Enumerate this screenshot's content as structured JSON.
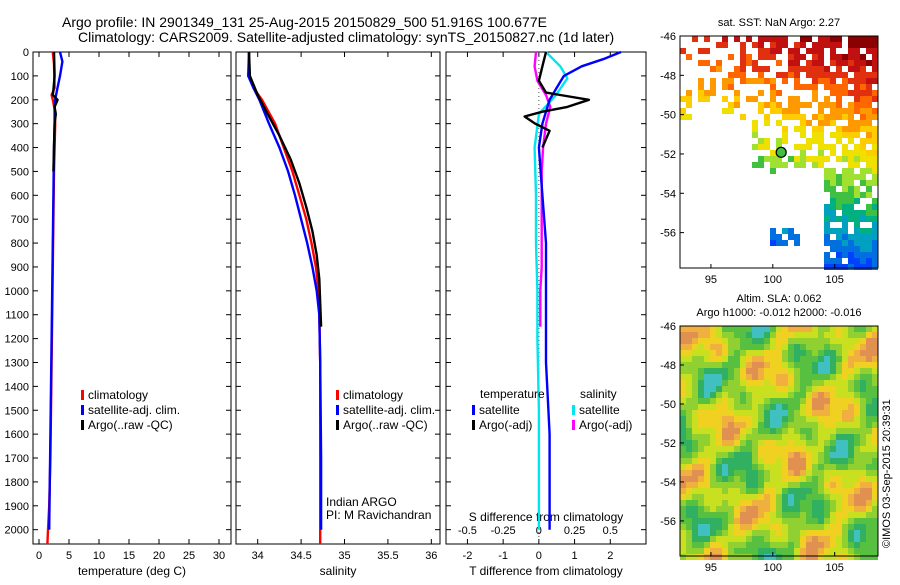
{
  "header": {
    "line1": "Argo profile: IN 2901349_131 25-Aug-2015 20150829_500 51.916S 100.677E",
    "line2": "Climatology: CARS2009. Satellite-adjusted climatology: synTS_20150827.nc (1d later)"
  },
  "credit": {
    "text": "©IMOS 03-Sep-2015 20:39:31"
  },
  "colors": {
    "climatology": "#ff0000",
    "satellite_adj": "#0000ff",
    "argo": "#000000",
    "t_sat_diff": "#0000ff",
    "t_argo_diff": "#000000",
    "s_sat_diff": "#00e5ee",
    "s_argo_diff": "#ff00ff"
  },
  "chart_data": [
    {
      "type": "line",
      "name": "temperature",
      "xlabel": "temperature (deg C)",
      "ylabel": "",
      "xlim": [
        -1,
        32
      ],
      "ylim": [
        2060,
        0
      ],
      "xticks": [
        0,
        5,
        10,
        15,
        20,
        25,
        30
      ],
      "yticks": [
        0,
        100,
        200,
        300,
        400,
        500,
        600,
        700,
        800,
        900,
        1000,
        1100,
        1200,
        1300,
        1400,
        1500,
        1600,
        1700,
        1800,
        1900,
        2000
      ],
      "legend": {
        "placement": "center",
        "entries": [
          "climatology",
          "satellite-adj. clim.",
          "Argo(..raw -QC)"
        ]
      },
      "series": [
        {
          "name": "climatology",
          "x": [
            2.3,
            2.5,
            2.6,
            2.1,
            2.3,
            2.6,
            2.7,
            2.6,
            2.5,
            2.4,
            2.3,
            2.2,
            2.1,
            2.0,
            1.9,
            1.7,
            1.5,
            1.4
          ],
          "y": [
            0,
            50,
            150,
            180,
            200,
            240,
            300,
            400,
            500,
            700,
            900,
            1100,
            1300,
            1500,
            1700,
            1900,
            2000,
            2060
          ]
        },
        {
          "name": "satellite-adj. clim.",
          "x": [
            3.5,
            3.9,
            3.5,
            3.0,
            2.7,
            2.6,
            2.6,
            2.5,
            2.4,
            2.3,
            2.2,
            2.1,
            2.0,
            1.9,
            1.8,
            1.7
          ],
          "y": [
            0,
            40,
            100,
            160,
            200,
            240,
            300,
            400,
            600,
            800,
            1000,
            1200,
            1400,
            1600,
            1800,
            2000
          ]
        },
        {
          "name": "Argo(..raw -QC)",
          "x": [
            2.5,
            2.6,
            2.4,
            2.3,
            3.1,
            2.6,
            2.8,
            2.6,
            2.5,
            2.4
          ],
          "y": [
            0,
            100,
            160,
            180,
            200,
            230,
            260,
            300,
            400,
            500
          ]
        }
      ]
    },
    {
      "type": "line",
      "name": "salinity",
      "xlabel": "salinity",
      "ylabel": "",
      "xlim": [
        33.75,
        36.1
      ],
      "ylim": [
        2060,
        0
      ],
      "xticks": [
        34,
        34.5,
        35,
        35.5,
        36
      ],
      "xticklabels": [
        "34",
        "34.5",
        "35",
        "35.5",
        "36"
      ],
      "legend": {
        "placement": "center",
        "entries": [
          "climatology",
          "satellite-adj. clim.",
          "Argo(..raw -QC)"
        ]
      },
      "annotations": [
        "Indian ARGO",
        "PI: M Ravichandran"
      ],
      "series": [
        {
          "name": "climatology",
          "x": [
            33.9,
            33.9,
            33.95,
            34.05,
            34.2,
            34.3,
            34.4,
            34.48,
            34.56,
            34.62,
            34.67,
            34.7,
            34.71,
            34.72,
            34.72,
            34.72
          ],
          "y": [
            0,
            100,
            150,
            200,
            300,
            400,
            500,
            600,
            700,
            800,
            900,
            1000,
            1100,
            1300,
            1700,
            2060
          ]
        },
        {
          "name": "satellite-adj. clim.",
          "x": [
            33.9,
            33.89,
            33.95,
            34.02,
            34.13,
            34.25,
            34.35,
            34.43,
            34.5,
            34.57,
            34.63,
            34.68,
            34.71,
            34.72,
            34.73,
            34.73
          ],
          "y": [
            0,
            100,
            150,
            200,
            300,
            400,
            500,
            600,
            700,
            800,
            900,
            1000,
            1100,
            1300,
            1700,
            2000
          ]
        },
        {
          "name": "Argo(..raw -QC)",
          "x": [
            33.9,
            33.91,
            34.0,
            34.1,
            34.25,
            34.38,
            34.48,
            34.56,
            34.63,
            34.68,
            34.71,
            34.72,
            34.73
          ],
          "y": [
            0,
            100,
            180,
            250,
            350,
            450,
            550,
            650,
            750,
            850,
            950,
            1050,
            1150
          ]
        }
      ]
    },
    {
      "type": "line",
      "name": "differences",
      "xlabel": "T difference from climatology",
      "x2label": "S difference from climatology",
      "ylabel": "",
      "xlim": [
        -2.6,
        3.0
      ],
      "ylim": [
        2060,
        0
      ],
      "xticks": [
        -2,
        -1,
        0,
        1,
        2
      ],
      "x2ticks": [
        -0.5,
        -0.25,
        0,
        0.25,
        0.5
      ],
      "x2ticklabels": [
        "-0.5",
        "-0.25",
        "0",
        "0.25",
        "0.5"
      ],
      "x2lim": [
        -0.65,
        0.75
      ],
      "legend": {
        "placement": "center",
        "groups": [
          {
            "title": "temperature",
            "entries": [
              "satellite",
              "Argo(-adj)"
            ]
          },
          {
            "title": "salinity",
            "entries": [
              "satellite",
              "Argo(-adj)"
            ]
          }
        ]
      },
      "series": [
        {
          "name": "temperature satellite",
          "axis": "T",
          "x": [
            2.3,
            1.8,
            1.2,
            0.7,
            0.5,
            0.3,
            0.2,
            0.1,
            0.0,
            0.1,
            0.2,
            0.2,
            0.2,
            0.3,
            0.3,
            0.3
          ],
          "y": [
            0,
            30,
            60,
            100,
            150,
            200,
            250,
            300,
            400,
            600,
            800,
            1000,
            1300,
            1600,
            1900,
            2000
          ]
        },
        {
          "name": "temperature Argo(-adj)",
          "axis": "T",
          "x": [
            0.2,
            0.1,
            0.0,
            0.2,
            0.6,
            1.4,
            0.8,
            0.1,
            -0.4,
            -0.1,
            0.3,
            0.1
          ],
          "y": [
            0,
            60,
            120,
            170,
            180,
            200,
            230,
            250,
            270,
            300,
            330,
            400
          ]
        },
        {
          "name": "salinity satellite",
          "axis": "S",
          "x": [
            0.05,
            0.15,
            0.2,
            0.12,
            0.0,
            -0.03,
            -0.02,
            -0.02,
            -0.01,
            -0.01,
            0.0,
            0.0,
            0.0
          ],
          "y": [
            0,
            60,
            110,
            180,
            260,
            400,
            600,
            800,
            1000,
            1200,
            1500,
            1800,
            2000
          ]
        },
        {
          "name": "salinity Argo(-adj)",
          "axis": "S",
          "x": [
            -0.02,
            -0.03,
            -0.01,
            0.05,
            0.08,
            0.05,
            0.03,
            0.02,
            0.02,
            0.02,
            0.01,
            0.01
          ],
          "y": [
            0,
            60,
            120,
            180,
            230,
            300,
            400,
            500,
            700,
            900,
            1000,
            1150
          ]
        }
      ]
    },
    {
      "type": "heatmap",
      "name": "sst-map",
      "title": "sat. SST: NaN Argo: 2.27",
      "xlim": [
        92.5,
        108.5
      ],
      "ylim": [
        -57.8,
        -46
      ],
      "xticks": [
        95,
        100,
        105
      ],
      "yticks": [
        -46,
        -48,
        -50,
        -52,
        -54,
        -56
      ],
      "argo_position": {
        "lon": 100.677,
        "lat": -51.916
      }
    },
    {
      "type": "heatmap",
      "name": "sla-map",
      "title": "Altim. SLA: 0.062",
      "subtitle": "Argo h1000: -0.012 h2000: -0.016",
      "xlim": [
        92.5,
        108.5
      ],
      "ylim": [
        -57.8,
        -46
      ],
      "xticks": [
        95,
        100,
        105
      ],
      "yticks": [
        -46,
        -48,
        -50,
        -52,
        -54,
        -56
      ]
    }
  ]
}
